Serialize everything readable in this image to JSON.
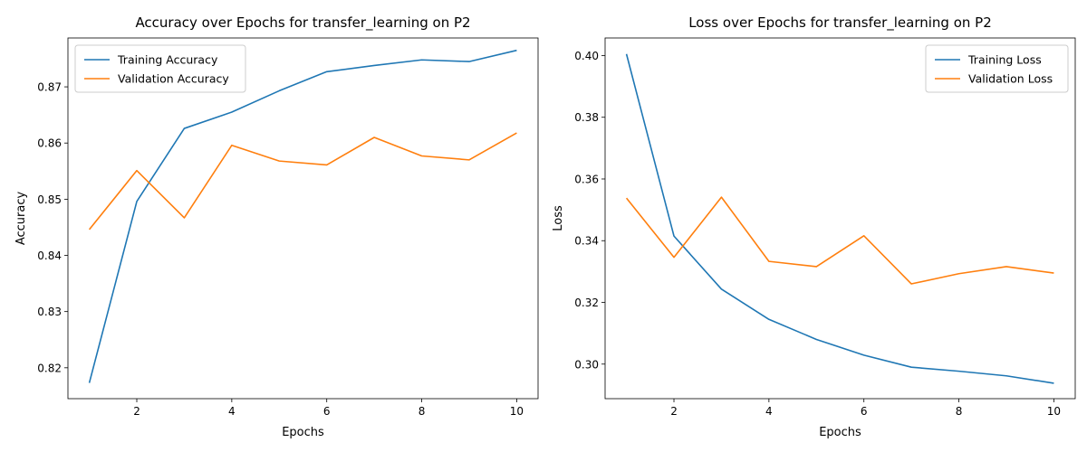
{
  "chart_data": [
    {
      "type": "line",
      "title": "Accuracy over Epochs for transfer_learning on P2",
      "xlabel": "Epochs",
      "ylabel": "Accuracy",
      "x": [
        1,
        2,
        3,
        4,
        5,
        6,
        7,
        8,
        9,
        10
      ],
      "xlim": [
        0.55,
        10.45
      ],
      "ylim": [
        0.8145,
        0.8787
      ],
      "xticks": [
        2,
        4,
        6,
        8,
        10
      ],
      "yticks": [
        0.82,
        0.83,
        0.84,
        0.85,
        0.86,
        0.87
      ],
      "ytick_labels": [
        "0.82",
        "0.83",
        "0.84",
        "0.85",
        "0.86",
        "0.87"
      ],
      "grid": false,
      "legend_position": "top-left",
      "series": [
        {
          "name": "Training Accuracy",
          "color": "#1f77b4",
          "values": [
            0.8173,
            0.8496,
            0.8626,
            0.8655,
            0.8693,
            0.8727,
            0.8738,
            0.8748,
            0.8745,
            0.8765
          ]
        },
        {
          "name": "Validation Accuracy",
          "color": "#ff7f0e",
          "values": [
            0.8446,
            0.8551,
            0.8467,
            0.8596,
            0.8568,
            0.8561,
            0.861,
            0.8577,
            0.857,
            0.8618
          ]
        }
      ]
    },
    {
      "type": "line",
      "title": "Loss over Epochs for transfer_learning on P2",
      "xlabel": "Epochs",
      "ylabel": "Loss",
      "x": [
        1,
        2,
        3,
        4,
        5,
        6,
        7,
        8,
        9,
        10
      ],
      "xlim": [
        0.55,
        10.45
      ],
      "ylim": [
        0.2888,
        0.4057
      ],
      "xticks": [
        2,
        4,
        6,
        8,
        10
      ],
      "yticks": [
        0.3,
        0.32,
        0.34,
        0.36,
        0.38,
        0.4
      ],
      "ytick_labels": [
        "0.30",
        "0.32",
        "0.34",
        "0.36",
        "0.38",
        "0.40"
      ],
      "grid": false,
      "legend_position": "top-right",
      "series": [
        {
          "name": "Training Loss",
          "color": "#1f77b4",
          "values": [
            0.4005,
            0.3415,
            0.3243,
            0.3145,
            0.308,
            0.3029,
            0.299,
            0.2977,
            0.2962,
            0.2938
          ]
        },
        {
          "name": "Validation Loss",
          "color": "#ff7f0e",
          "values": [
            0.3538,
            0.3346,
            0.3541,
            0.3333,
            0.3316,
            0.3416,
            0.326,
            0.3293,
            0.3316,
            0.3295
          ]
        }
      ]
    }
  ]
}
